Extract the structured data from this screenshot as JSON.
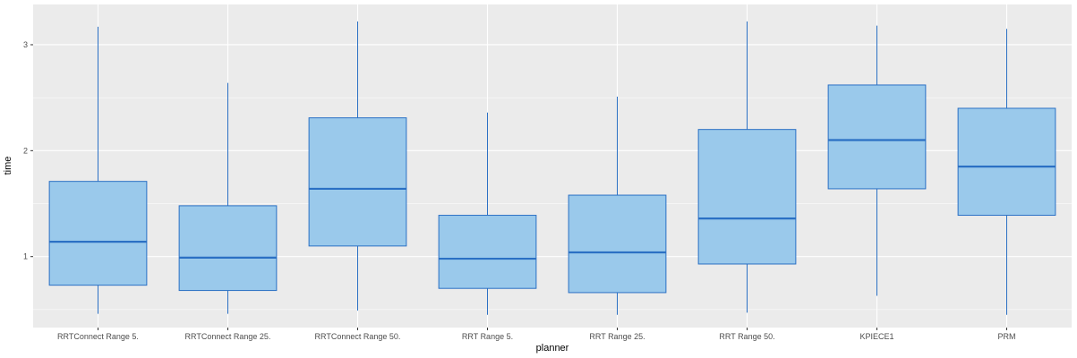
{
  "chart_data": {
    "type": "boxplot",
    "xlabel": "planner",
    "ylabel": "time",
    "ylim": [
      0.33,
      3.38
    ],
    "y_ticks": [
      1,
      2,
      3
    ],
    "grid": true,
    "categories": [
      "RRTConnect Range 5.",
      "RRTConnect Range 25.",
      "RRTConnect Range 50.",
      "RRT Range 5.",
      "RRT Range 25.",
      "RRT Range 50.",
      "KPIECE1",
      "PRM"
    ],
    "boxes": [
      {
        "min": 0.46,
        "q1": 0.73,
        "median": 1.14,
        "q3": 1.71,
        "max": 3.17
      },
      {
        "min": 0.46,
        "q1": 0.68,
        "median": 0.99,
        "q3": 1.48,
        "max": 2.64
      },
      {
        "min": 0.49,
        "q1": 1.1,
        "median": 1.64,
        "q3": 2.31,
        "max": 3.22
      },
      {
        "min": 0.45,
        "q1": 0.7,
        "median": 0.98,
        "q3": 1.39,
        "max": 2.36
      },
      {
        "min": 0.45,
        "q1": 0.66,
        "median": 1.04,
        "q3": 1.58,
        "max": 2.51
      },
      {
        "min": 0.47,
        "q1": 0.93,
        "median": 1.36,
        "q3": 2.2,
        "max": 3.22
      },
      {
        "min": 0.63,
        "q1": 1.64,
        "median": 2.1,
        "q3": 2.62,
        "max": 3.18
      },
      {
        "min": 0.45,
        "q1": 1.39,
        "median": 1.85,
        "q3": 2.4,
        "max": 3.15
      }
    ],
    "colors": {
      "panel": "#EBEBEB",
      "grid_major": "#FFFFFF",
      "box_fill": "#9AC9EB",
      "box_line": "#2B70C4",
      "tick": "#333333"
    }
  }
}
